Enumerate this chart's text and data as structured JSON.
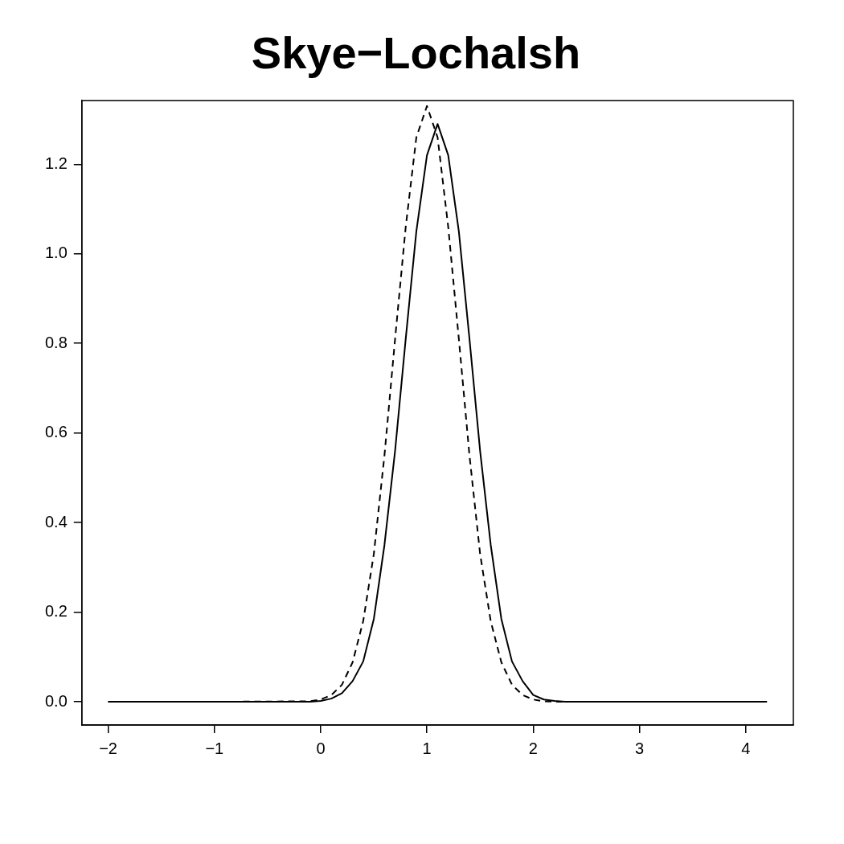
{
  "chart_data": {
    "type": "line",
    "title": "Skye−Lochalsh",
    "series": [
      {
        "color": "#000000",
        "line_style": "solid",
        "x": [
          -2,
          -1,
          -0.1,
          0,
          0.1,
          0.2,
          0.3,
          0.4,
          0.5,
          0.6,
          0.7,
          0.8,
          0.9,
          1.0,
          1.1,
          1.2,
          1.3,
          1.4,
          1.5,
          1.6,
          1.7,
          1.8,
          1.9,
          2.0,
          2.1,
          2.2,
          2.3,
          3,
          4.2
        ],
        "values": [
          0,
          0,
          0,
          0.002,
          0.007,
          0.019,
          0.046,
          0.09,
          0.185,
          0.35,
          0.56,
          0.81,
          1.05,
          1.22,
          1.29,
          1.22,
          1.05,
          0.81,
          0.56,
          0.35,
          0.185,
          0.09,
          0.046,
          0.015,
          0.005,
          0.002,
          0,
          0,
          0
        ]
      },
      {
        "color": "#000000",
        "line_style": "dashed",
        "x": [
          -2,
          -1,
          -0.1,
          0,
          0.1,
          0.2,
          0.3,
          0.4,
          0.5,
          0.6,
          0.7,
          0.8,
          0.9,
          1.0,
          1.1,
          1.2,
          1.3,
          1.4,
          1.5,
          1.6,
          1.7,
          1.8,
          1.9,
          2.0,
          2.1,
          2.2,
          3,
          4.2
        ],
        "values": [
          0,
          0,
          0.001,
          0.005,
          0.015,
          0.038,
          0.088,
          0.18,
          0.33,
          0.55,
          0.81,
          1.06,
          1.26,
          1.33,
          1.26,
          1.06,
          0.81,
          0.55,
          0.33,
          0.18,
          0.088,
          0.038,
          0.015,
          0.005,
          0.001,
          0,
          0,
          0
        ]
      }
    ],
    "xlim": [
      -2.248,
      4.448
    ],
    "xticks": [
      {
        "value": -2,
        "label": "−2"
      },
      {
        "value": -1,
        "label": "−1"
      },
      0,
      1,
      2,
      3,
      4
    ],
    "ylim": [
      -0.052,
      1.342
    ],
    "yticks": [
      {
        "value": 0,
        "label": "0.0"
      },
      {
        "value": 0.2,
        "label": "0.2"
      },
      {
        "value": 0.4,
        "label": "0.4"
      },
      {
        "value": 0.6,
        "label": "0.6"
      },
      {
        "value": 0.8,
        "label": "0.8"
      },
      {
        "value": 1.0,
        "label": "1.0"
      },
      {
        "value": 1.2,
        "label": "1.2"
      }
    ],
    "grid": false,
    "legend": false
  }
}
